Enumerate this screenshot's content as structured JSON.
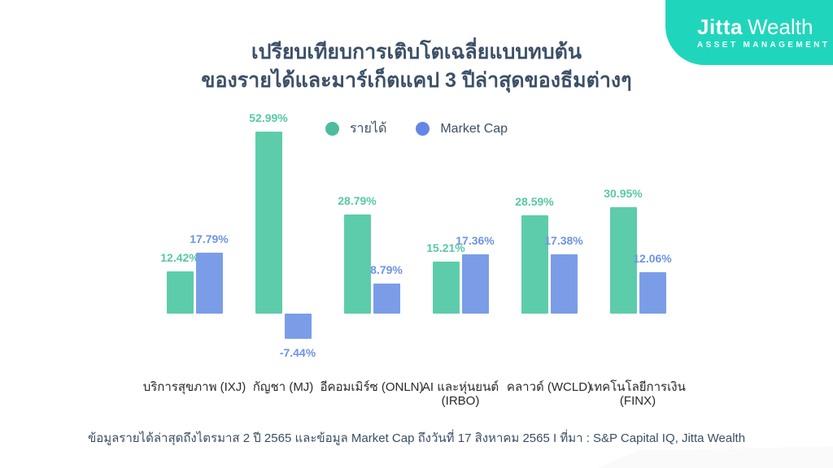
{
  "logo": {
    "brand_bold": "Jitta",
    "brand_light": "Wealth",
    "subtitle": "ASSET MANAGEMENT",
    "bg_color": "#1fd6bc"
  },
  "title": {
    "line1": "เปรียบเทียบการเติบโตเฉลี่ยแบบทบต้น",
    "line2": "ของรายได้และมาร์เก็ตแคป 3 ปีล่าสุดของธีมต่างๆ",
    "color": "#3c5068"
  },
  "legend": {
    "items": [
      {
        "label": "รายได้",
        "dot_color": "#4ebc9e"
      },
      {
        "label": "Market Cap",
        "dot_color": "#6486e6"
      }
    ]
  },
  "chart_data": {
    "type": "bar",
    "title": "เปรียบเทียบการเติบโตเฉลี่ยแบบทบต้น ของรายได้และมาร์เก็ตแคป 3 ปีล่าสุดของธีมต่างๆ",
    "categories": [
      "บริการสุขภาพ (IXJ)",
      "กัญชา (MJ)",
      "อีคอมเมิร์ซ (ONLN)",
      "AI และหุ่นยนต์\n(IRBO)",
      "คลาวด์ (WCLD)",
      "เทคโนโลยีการเงิน\n(FINX)"
    ],
    "series": [
      {
        "name": "รายได้",
        "color": "#5dccab",
        "label_color": "#57c9a7",
        "values": [
          12.42,
          52.99,
          28.79,
          15.21,
          28.59,
          30.95
        ],
        "labels": [
          "12.42%",
          "52.99%",
          "28.79%",
          "15.21%",
          "28.59%",
          "30.95%"
        ]
      },
      {
        "name": "Market Cap",
        "color": "#7b9de8",
        "label_color": "#6e93e6",
        "values": [
          17.79,
          -7.44,
          8.79,
          17.36,
          17.38,
          12.06
        ],
        "labels": [
          "17.79%",
          "-7.44%",
          "8.79%",
          "17.36%",
          "17.38%",
          "12.06%"
        ]
      }
    ],
    "value_suffix": "%",
    "grid": false,
    "axes_visible": false,
    "legend_position": "top-center",
    "ylim": [
      -10,
      60
    ]
  },
  "footer": {
    "note": "ข้อมูลรายได้ล่าสุดถึงไตรมาส 2 ปี 2565 และข้อมูล Market Cap ถึงวันที่ 17 สิงหาคม 2565 I ที่มา : S&P Capital IQ, Jitta Wealth"
  }
}
